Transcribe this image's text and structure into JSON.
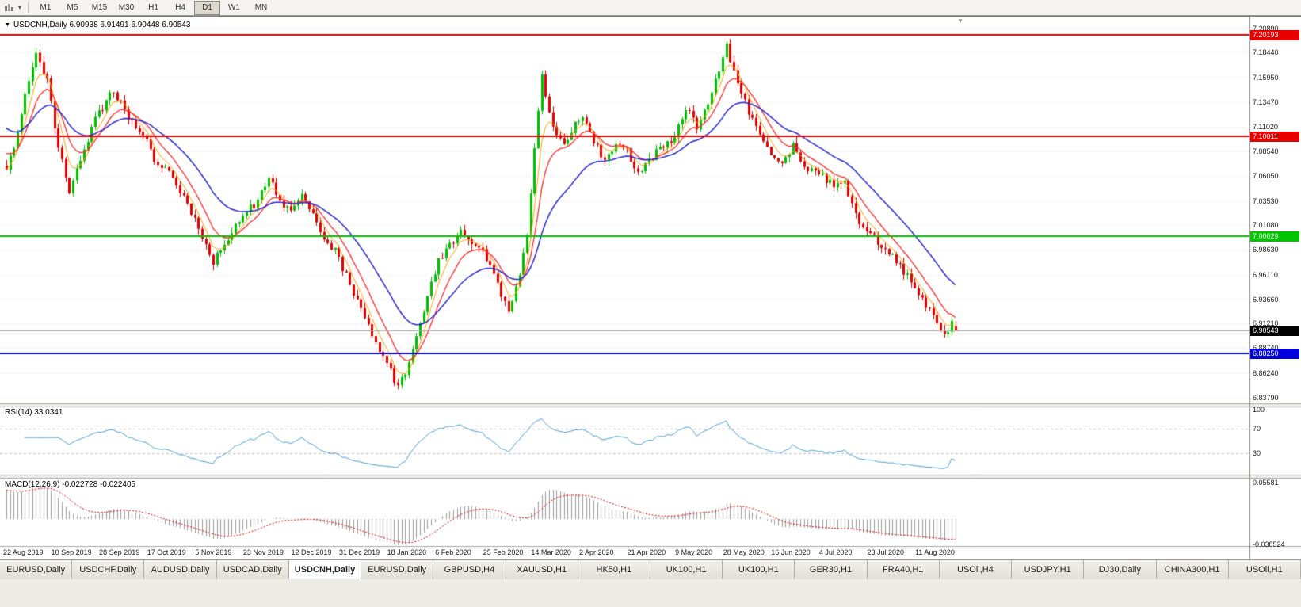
{
  "icons": {
    "collapse_triangle": "▼",
    "chevron_down": "▾",
    "shift_marker": "▼"
  },
  "toolbar": {
    "timeframes": [
      "M1",
      "M5",
      "M15",
      "M30",
      "H1",
      "H4",
      "D1",
      "W1",
      "MN"
    ],
    "active_timeframe": "D1"
  },
  "chart": {
    "header": "USDCNH,Daily 6.90938 6.91491 6.90448 6.90543",
    "price_axis_ticks": [
      "7.20890",
      "7.18440",
      "7.15950",
      "7.13470",
      "7.11020",
      "7.08540",
      "7.06050",
      "7.03530",
      "7.01080",
      "6.98630",
      "6.96110",
      "6.93660",
      "6.91210",
      "6.88740",
      "6.86240",
      "6.83790"
    ],
    "hlines": [
      {
        "price": 7.20193,
        "label": "7.20193",
        "color": "#E60000"
      },
      {
        "price": 7.10011,
        "label": "7.10011",
        "color": "#E60000"
      },
      {
        "price": 7.00029,
        "label": "7.00029",
        "color": "#00C400"
      },
      {
        "price": 6.8825,
        "label": "6.88250",
        "color": "#0000DE"
      }
    ],
    "current_price": {
      "value": 6.90543,
      "label": "6.90543",
      "bg": "#000000"
    },
    "date_labels": [
      "22 Aug 2019",
      "10 Sep 2019",
      "28 Sep 2019",
      "17 Oct 2019",
      "5 Nov 2019",
      "23 Nov 2019",
      "12 Dec 2019",
      "31 Dec 2019",
      "18 Jan 2020",
      "6 Feb 2020",
      "25 Feb 2020",
      "14 Mar 2020",
      "2 Apr 2020",
      "21 Apr 2020",
      "9 May 2020",
      "28 May 2020",
      "16 Jun 2020",
      "4 Jul 2020",
      "23 Jul 2020",
      "11 Aug 2020"
    ],
    "colors": {
      "up": "#00BE00",
      "down": "#E00000",
      "ma_fast": "#FFA000",
      "ma_mid": "#FF2A2A",
      "ma_slow": "#2828D0",
      "rsi_line": "#4A9ED6",
      "macd_hist": "#9B9B9B",
      "macd_signal": "#D40000",
      "grid": "#DCDCDC",
      "bid_line": "#A8A8A8"
    }
  },
  "chart_data": {
    "type": "candlestick",
    "symbol": "USDCNH",
    "timeframe": "Daily",
    "bars": 258,
    "price_min": 6.832,
    "price_max": 7.219,
    "last_bar": {
      "open": 6.90938,
      "high": 6.91491,
      "low": 6.90448,
      "close": 6.90543
    },
    "moving_average_periods": [
      5,
      10,
      25
    ],
    "close_waypoints": [
      [
        0,
        7.065
      ],
      [
        2,
        7.09
      ],
      [
        5,
        7.14
      ],
      [
        8,
        7.183
      ],
      [
        11,
        7.155
      ],
      [
        14,
        7.09
      ],
      [
        17,
        7.045
      ],
      [
        20,
        7.075
      ],
      [
        23,
        7.11
      ],
      [
        26,
        7.13
      ],
      [
        29,
        7.148
      ],
      [
        32,
        7.125
      ],
      [
        35,
        7.11
      ],
      [
        38,
        7.095
      ],
      [
        41,
        7.07
      ],
      [
        44,
        7.065
      ],
      [
        47,
        7.045
      ],
      [
        50,
        7.025
      ],
      [
        53,
        6.995
      ],
      [
        56,
        6.975
      ],
      [
        59,
        6.99
      ],
      [
        62,
        7.01
      ],
      [
        65,
        7.025
      ],
      [
        68,
        7.035
      ],
      [
        71,
        7.06
      ],
      [
        74,
        7.035
      ],
      [
        77,
        7.025
      ],
      [
        80,
        7.04
      ],
      [
        83,
        7.02
      ],
      [
        86,
        7.0
      ],
      [
        89,
        6.985
      ],
      [
        92,
        6.96
      ],
      [
        95,
        6.935
      ],
      [
        98,
        6.91
      ],
      [
        101,
        6.885
      ],
      [
        104,
        6.865
      ],
      [
        106,
        6.848
      ],
      [
        109,
        6.87
      ],
      [
        112,
        6.91
      ],
      [
        115,
        6.955
      ],
      [
        117,
        6.975
      ],
      [
        120,
        6.99
      ],
      [
        123,
        7.005
      ],
      [
        126,
        6.995
      ],
      [
        129,
        6.985
      ],
      [
        132,
        6.965
      ],
      [
        134,
        6.94
      ],
      [
        136,
        6.925
      ],
      [
        139,
        6.96
      ],
      [
        141,
        7.0
      ],
      [
        143,
        7.09
      ],
      [
        145,
        7.16
      ],
      [
        148,
        7.11
      ],
      [
        151,
        7.09
      ],
      [
        154,
        7.115
      ],
      [
        156,
        7.12
      ],
      [
        159,
        7.095
      ],
      [
        162,
        7.075
      ],
      [
        165,
        7.095
      ],
      [
        168,
        7.085
      ],
      [
        171,
        7.065
      ],
      [
        174,
        7.075
      ],
      [
        177,
        7.09
      ],
      [
        181,
        7.1
      ],
      [
        184,
        7.13
      ],
      [
        187,
        7.11
      ],
      [
        190,
        7.135
      ],
      [
        193,
        7.165
      ],
      [
        195,
        7.19
      ],
      [
        198,
        7.155
      ],
      [
        201,
        7.125
      ],
      [
        204,
        7.105
      ],
      [
        207,
        7.085
      ],
      [
        210,
        7.075
      ],
      [
        213,
        7.09
      ],
      [
        216,
        7.07
      ],
      [
        219,
        7.065
      ],
      [
        221,
        7.06
      ],
      [
        224,
        7.05
      ],
      [
        227,
        7.055
      ],
      [
        230,
        7.02
      ],
      [
        233,
        7.005
      ],
      [
        236,
        6.995
      ],
      [
        239,
        6.985
      ],
      [
        242,
        6.97
      ],
      [
        245,
        6.955
      ],
      [
        248,
        6.935
      ],
      [
        251,
        6.92
      ],
      [
        254,
        6.898
      ],
      [
        256,
        6.912
      ],
      [
        257,
        6.905
      ]
    ]
  },
  "rsi_panel": {
    "label": "RSI(14) 33.0341",
    "period": 14,
    "value": 33.0341,
    "axis_ticks": [
      {
        "value": 100,
        "label": "100"
      },
      {
        "value": 70,
        "label": "70"
      },
      {
        "value": 30,
        "label": "30"
      }
    ],
    "dashed_levels": [
      70,
      30
    ]
  },
  "macd_panel": {
    "label": "MACD(12,26,9) -0.022728 -0.022405",
    "fast": 12,
    "slow": 26,
    "signal": 9,
    "macd_value": -0.022728,
    "signal_value": -0.022405,
    "axis_ticks": [
      {
        "value": 0.05581,
        "label": "0.05581"
      },
      {
        "value": -0.038524,
        "label": "-0.038524"
      }
    ]
  },
  "tabbar": {
    "active_index": 4,
    "tabs": [
      "EURUSD,Daily",
      "USDCHF,Daily",
      "AUDUSD,Daily",
      "USDCAD,Daily",
      "USDCNH,Daily",
      "EURUSD,Daily",
      "GBPUSD,H4",
      "XAUUSD,H1",
      "HK50,H1",
      "UK100,H1",
      "UK100,H1",
      "GER30,H1",
      "FRA40,H1",
      "USOil,H4",
      "USDJPY,H1",
      "DJ30,Daily",
      "CHINA300,H1",
      "USOil,H1"
    ]
  }
}
